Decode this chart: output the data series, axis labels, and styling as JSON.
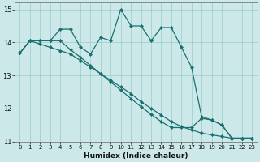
{
  "xlabel": "Humidex (Indice chaleur)",
  "background_color": "#cce8e8",
  "grid_color": "#99cccc",
  "line_color": "#1a7070",
  "xlim": [
    -0.5,
    23.5
  ],
  "ylim": [
    11,
    15.2
  ],
  "xticks": [
    0,
    1,
    2,
    3,
    4,
    5,
    6,
    7,
    8,
    9,
    10,
    11,
    12,
    13,
    14,
    15,
    16,
    17,
    18,
    19,
    20,
    21,
    22,
    23
  ],
  "yticks": [
    11,
    12,
    13,
    14,
    15
  ],
  "series1_x": [
    0,
    1,
    2,
    3,
    4,
    5,
    6,
    7,
    8,
    9,
    10,
    11,
    12,
    13,
    14,
    15,
    16,
    17,
    18,
    19,
    20,
    21,
    22,
    23
  ],
  "series1_y": [
    13.68,
    14.05,
    14.05,
    14.05,
    14.4,
    14.4,
    13.85,
    13.65,
    14.15,
    14.05,
    15.0,
    14.5,
    14.5,
    14.05,
    14.45,
    14.45,
    13.85,
    13.25,
    11.75,
    11.65,
    11.5,
    11.1,
    11.1,
    11.1
  ],
  "series2_x": [
    0,
    1,
    2,
    3,
    4,
    5,
    6,
    7,
    8,
    9,
    10,
    11,
    12,
    13,
    14,
    15,
    16,
    17,
    18,
    19,
    20,
    21,
    22,
    23
  ],
  "series2_y": [
    13.68,
    14.05,
    13.95,
    13.85,
    13.75,
    13.65,
    13.45,
    13.25,
    13.05,
    12.85,
    12.65,
    12.45,
    12.2,
    12.0,
    11.8,
    11.6,
    11.45,
    11.35,
    11.25,
    11.2,
    11.15,
    11.1,
    11.1,
    11.1
  ],
  "series3_x": [
    0,
    1,
    2,
    3,
    4,
    5,
    6,
    7,
    8,
    9,
    10,
    11,
    12,
    13,
    14,
    15,
    16,
    17,
    18,
    19,
    20,
    21,
    22,
    23
  ],
  "series3_y": [
    13.68,
    14.05,
    14.05,
    14.05,
    14.05,
    13.78,
    13.55,
    13.3,
    13.05,
    12.8,
    12.55,
    12.3,
    12.05,
    11.82,
    11.6,
    11.42,
    11.42,
    11.42,
    11.7,
    11.65,
    11.5,
    11.1,
    11.1,
    11.1
  ]
}
